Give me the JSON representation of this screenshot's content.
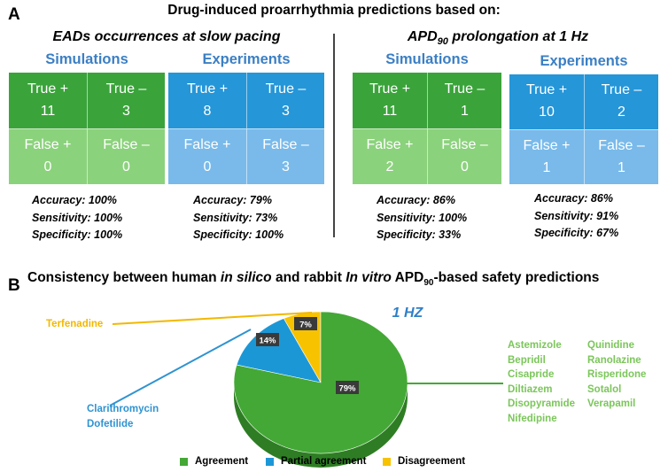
{
  "panel_a": {
    "letter": "A",
    "title": "Drug-induced proarrhythmia predictions based on:",
    "left_title": "EADs occurrences at slow pacing",
    "right_title_prefix": "APD",
    "right_title_sub": "90",
    "right_title_suffix": " prolongation at 1 Hz",
    "matrices": [
      {
        "label": "Simulations",
        "color": "green",
        "cells": [
          {
            "name": "True +",
            "value": "11"
          },
          {
            "name": "True –",
            "value": "3"
          },
          {
            "name": "False +",
            "value": "0"
          },
          {
            "name": "False –",
            "value": "0"
          }
        ],
        "accuracy": "Accuracy: 100%",
        "sensitivity": "Sensitivity: 100%",
        "specificity": "Specificity: 100%"
      },
      {
        "label": "Experiments",
        "color": "blue",
        "cells": [
          {
            "name": "True +",
            "value": "8"
          },
          {
            "name": "True –",
            "value": "3"
          },
          {
            "name": "False +",
            "value": "0"
          },
          {
            "name": "False –",
            "value": "3"
          }
        ],
        "accuracy": "Accuracy: 79%",
        "sensitivity": "Sensitivity: 73%",
        "specificity": "Specificity: 100%"
      },
      {
        "label": "Simulations",
        "color": "green",
        "cells": [
          {
            "name": "True +",
            "value": "11"
          },
          {
            "name": "True –",
            "value": "1"
          },
          {
            "name": "False +",
            "value": "2"
          },
          {
            "name": "False –",
            "value": "0"
          }
        ],
        "accuracy": "Accuracy: 86%",
        "sensitivity": "Sensitivity: 100%",
        "specificity": "Specificity: 33%"
      },
      {
        "label": "Experiments",
        "color": "blue",
        "cells": [
          {
            "name": "True +",
            "value": "10"
          },
          {
            "name": "True –",
            "value": "2"
          },
          {
            "name": "False +",
            "value": "1"
          },
          {
            "name": "False –",
            "value": "1"
          }
        ],
        "accuracy": "Accuracy: 86%",
        "sensitivity": "Sensitivity: 91%",
        "specificity": "Specificity: 67%"
      }
    ]
  },
  "panel_b": {
    "letter": "B",
    "title_part1": "Consistency between human ",
    "title_italic1": "in silico",
    "title_part2": " and rabbit ",
    "title_italic2": "In vitro",
    "title_part3": " APD",
    "title_sub": "90",
    "title_part4": "-based safety predictions",
    "frequency_label": "1 HZ",
    "disagreement_drugs": [
      "Terfenadine"
    ],
    "partial_drugs": [
      "Clarithromycin",
      "Dofetilide"
    ],
    "agreement_drugs_col1": [
      "Astemizole",
      "Bepridil",
      "Cisapride",
      "Diltiazem",
      "Disopyramide",
      "Nifedipine"
    ],
    "agreement_drugs_col2": [
      "Quinidine",
      "Ranolazine",
      "Risperidone",
      "Sotalol",
      "Verapamil"
    ],
    "legend": {
      "agreement": "Agreement",
      "partial": "Partial agreement",
      "disagreement": "Disagreement"
    },
    "colors": {
      "agreement": "#44a836",
      "agreement_side": "#2e7d24",
      "partial": "#1c97d6",
      "disagreement": "#f7c200",
      "label_text_green": "#7bc65a",
      "label_text_blue": "#2f93d1",
      "label_text_yellow": "#f2b800"
    }
  },
  "chart_data": {
    "type": "pie",
    "title": "1 HZ",
    "categories": [
      "Agreement",
      "Partial agreement",
      "Disagreement"
    ],
    "values": [
      79,
      14,
      7
    ],
    "value_labels": [
      "79%",
      "14%",
      "7%"
    ],
    "legend_position": "bottom"
  }
}
